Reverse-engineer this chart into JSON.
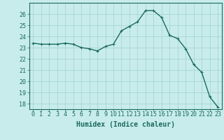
{
  "x": [
    0,
    1,
    2,
    3,
    4,
    5,
    6,
    7,
    8,
    9,
    10,
    11,
    12,
    13,
    14,
    15,
    16,
    17,
    18,
    19,
    20,
    21,
    22,
    23
  ],
  "y": [
    23.4,
    23.3,
    23.3,
    23.3,
    23.4,
    23.3,
    23.0,
    22.9,
    22.7,
    23.1,
    23.3,
    24.5,
    24.9,
    25.3,
    26.3,
    26.3,
    25.7,
    24.1,
    23.8,
    22.9,
    21.5,
    20.8,
    18.6,
    17.7
  ],
  "line_color": "#1a6b5a",
  "marker": "+",
  "marker_size": 3,
  "bg_color": "#c8ecec",
  "grid_color": "#a0d0d0",
  "xlabel": "Humidex (Indice chaleur)",
  "xlabel_fontsize": 7,
  "ylim": [
    17.5,
    27
  ],
  "xlim": [
    -0.5,
    23.5
  ],
  "yticks": [
    18,
    19,
    20,
    21,
    22,
    23,
    24,
    25,
    26
  ],
  "xticks": [
    0,
    1,
    2,
    3,
    4,
    5,
    6,
    7,
    8,
    9,
    10,
    11,
    12,
    13,
    14,
    15,
    16,
    17,
    18,
    19,
    20,
    21,
    22,
    23
  ],
  "tick_fontsize": 6,
  "line_width": 1.0
}
